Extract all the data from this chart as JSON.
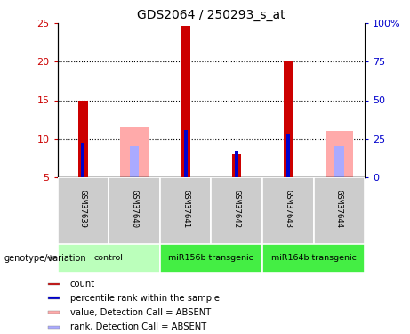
{
  "title": "GDS2064 / 250293_s_at",
  "samples": [
    "GSM37639",
    "GSM37640",
    "GSM37641",
    "GSM37642",
    "GSM37643",
    "GSM37644"
  ],
  "count_values": [
    15.0,
    null,
    24.7,
    8.0,
    20.2,
    null
  ],
  "percentile_values": [
    9.5,
    null,
    11.1,
    8.5,
    10.7,
    null
  ],
  "absent_value_bars": [
    null,
    11.5,
    null,
    null,
    null,
    11.0
  ],
  "absent_rank_bars": [
    null,
    9.0,
    null,
    null,
    null,
    9.0
  ],
  "ylim_left": [
    5,
    25
  ],
  "ylim_right": [
    0,
    100
  ],
  "yticks_left": [
    5,
    10,
    15,
    20,
    25
  ],
  "yticks_right": [
    0,
    25,
    50,
    75,
    100
  ],
  "ytick_labels_right": [
    "0",
    "25",
    "50",
    "75",
    "100%"
  ],
  "count_color": "#cc0000",
  "percentile_color": "#0000cc",
  "absent_value_color": "#ffaaaa",
  "absent_rank_color": "#aaaaff",
  "left_tick_color": "#cc0000",
  "right_tick_color": "#0000cc",
  "genotype_label": "genotype/variation",
  "group_info": [
    {
      "label": "control",
      "start": 0,
      "end": 1,
      "color": "#bbffbb"
    },
    {
      "label": "miR156b transgenic",
      "start": 2,
      "end": 3,
      "color": "#44ee44"
    },
    {
      "label": "miR164b transgenic",
      "start": 4,
      "end": 5,
      "color": "#44ee44"
    }
  ],
  "legend_items": [
    {
      "color": "#cc0000",
      "label": "count"
    },
    {
      "color": "#0000cc",
      "label": "percentile rank within the sample"
    },
    {
      "color": "#ffaaaa",
      "label": "value, Detection Call = ABSENT"
    },
    {
      "color": "#aaaaff",
      "label": "rank, Detection Call = ABSENT"
    }
  ]
}
